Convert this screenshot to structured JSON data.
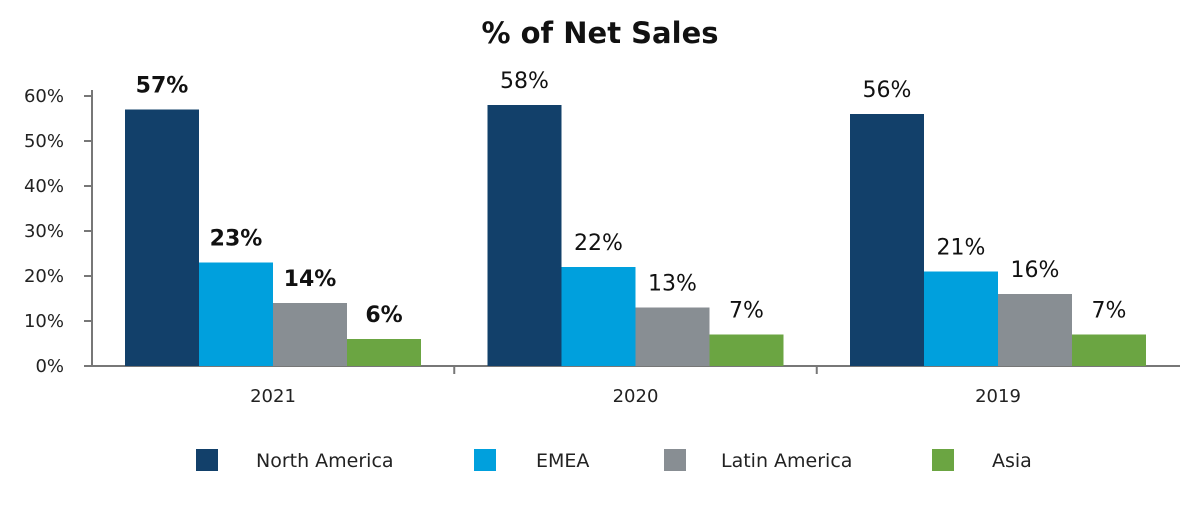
{
  "chart_data": {
    "type": "bar",
    "title": "% of Net Sales",
    "categories": [
      "2021",
      "2020",
      "2019"
    ],
    "series": [
      {
        "name": "North America",
        "values": [
          57,
          58,
          56
        ],
        "labels": [
          "57%",
          "58%",
          "56%"
        ],
        "color": "#12406A"
      },
      {
        "name": "EMEA",
        "values": [
          23,
          22,
          21
        ],
        "labels": [
          "23%",
          "22%",
          "21%"
        ],
        "color": "#00A0DD"
      },
      {
        "name": "Latin America",
        "values": [
          14,
          13,
          16
        ],
        "labels": [
          "14%",
          "13%",
          "16%"
        ],
        "color": "#888E93"
      },
      {
        "name": "Asia",
        "values": [
          6,
          7,
          7
        ],
        "labels": [
          "6%",
          "7%",
          "7%"
        ],
        "color": "#6BA542"
      }
    ],
    "bold_category": "2021",
    "yticks": [
      "0%",
      "10%",
      "20%",
      "30%",
      "40%",
      "50%",
      "60%"
    ],
    "ylim": [
      0,
      60
    ],
    "grid": false,
    "legend_position": "bottom"
  }
}
